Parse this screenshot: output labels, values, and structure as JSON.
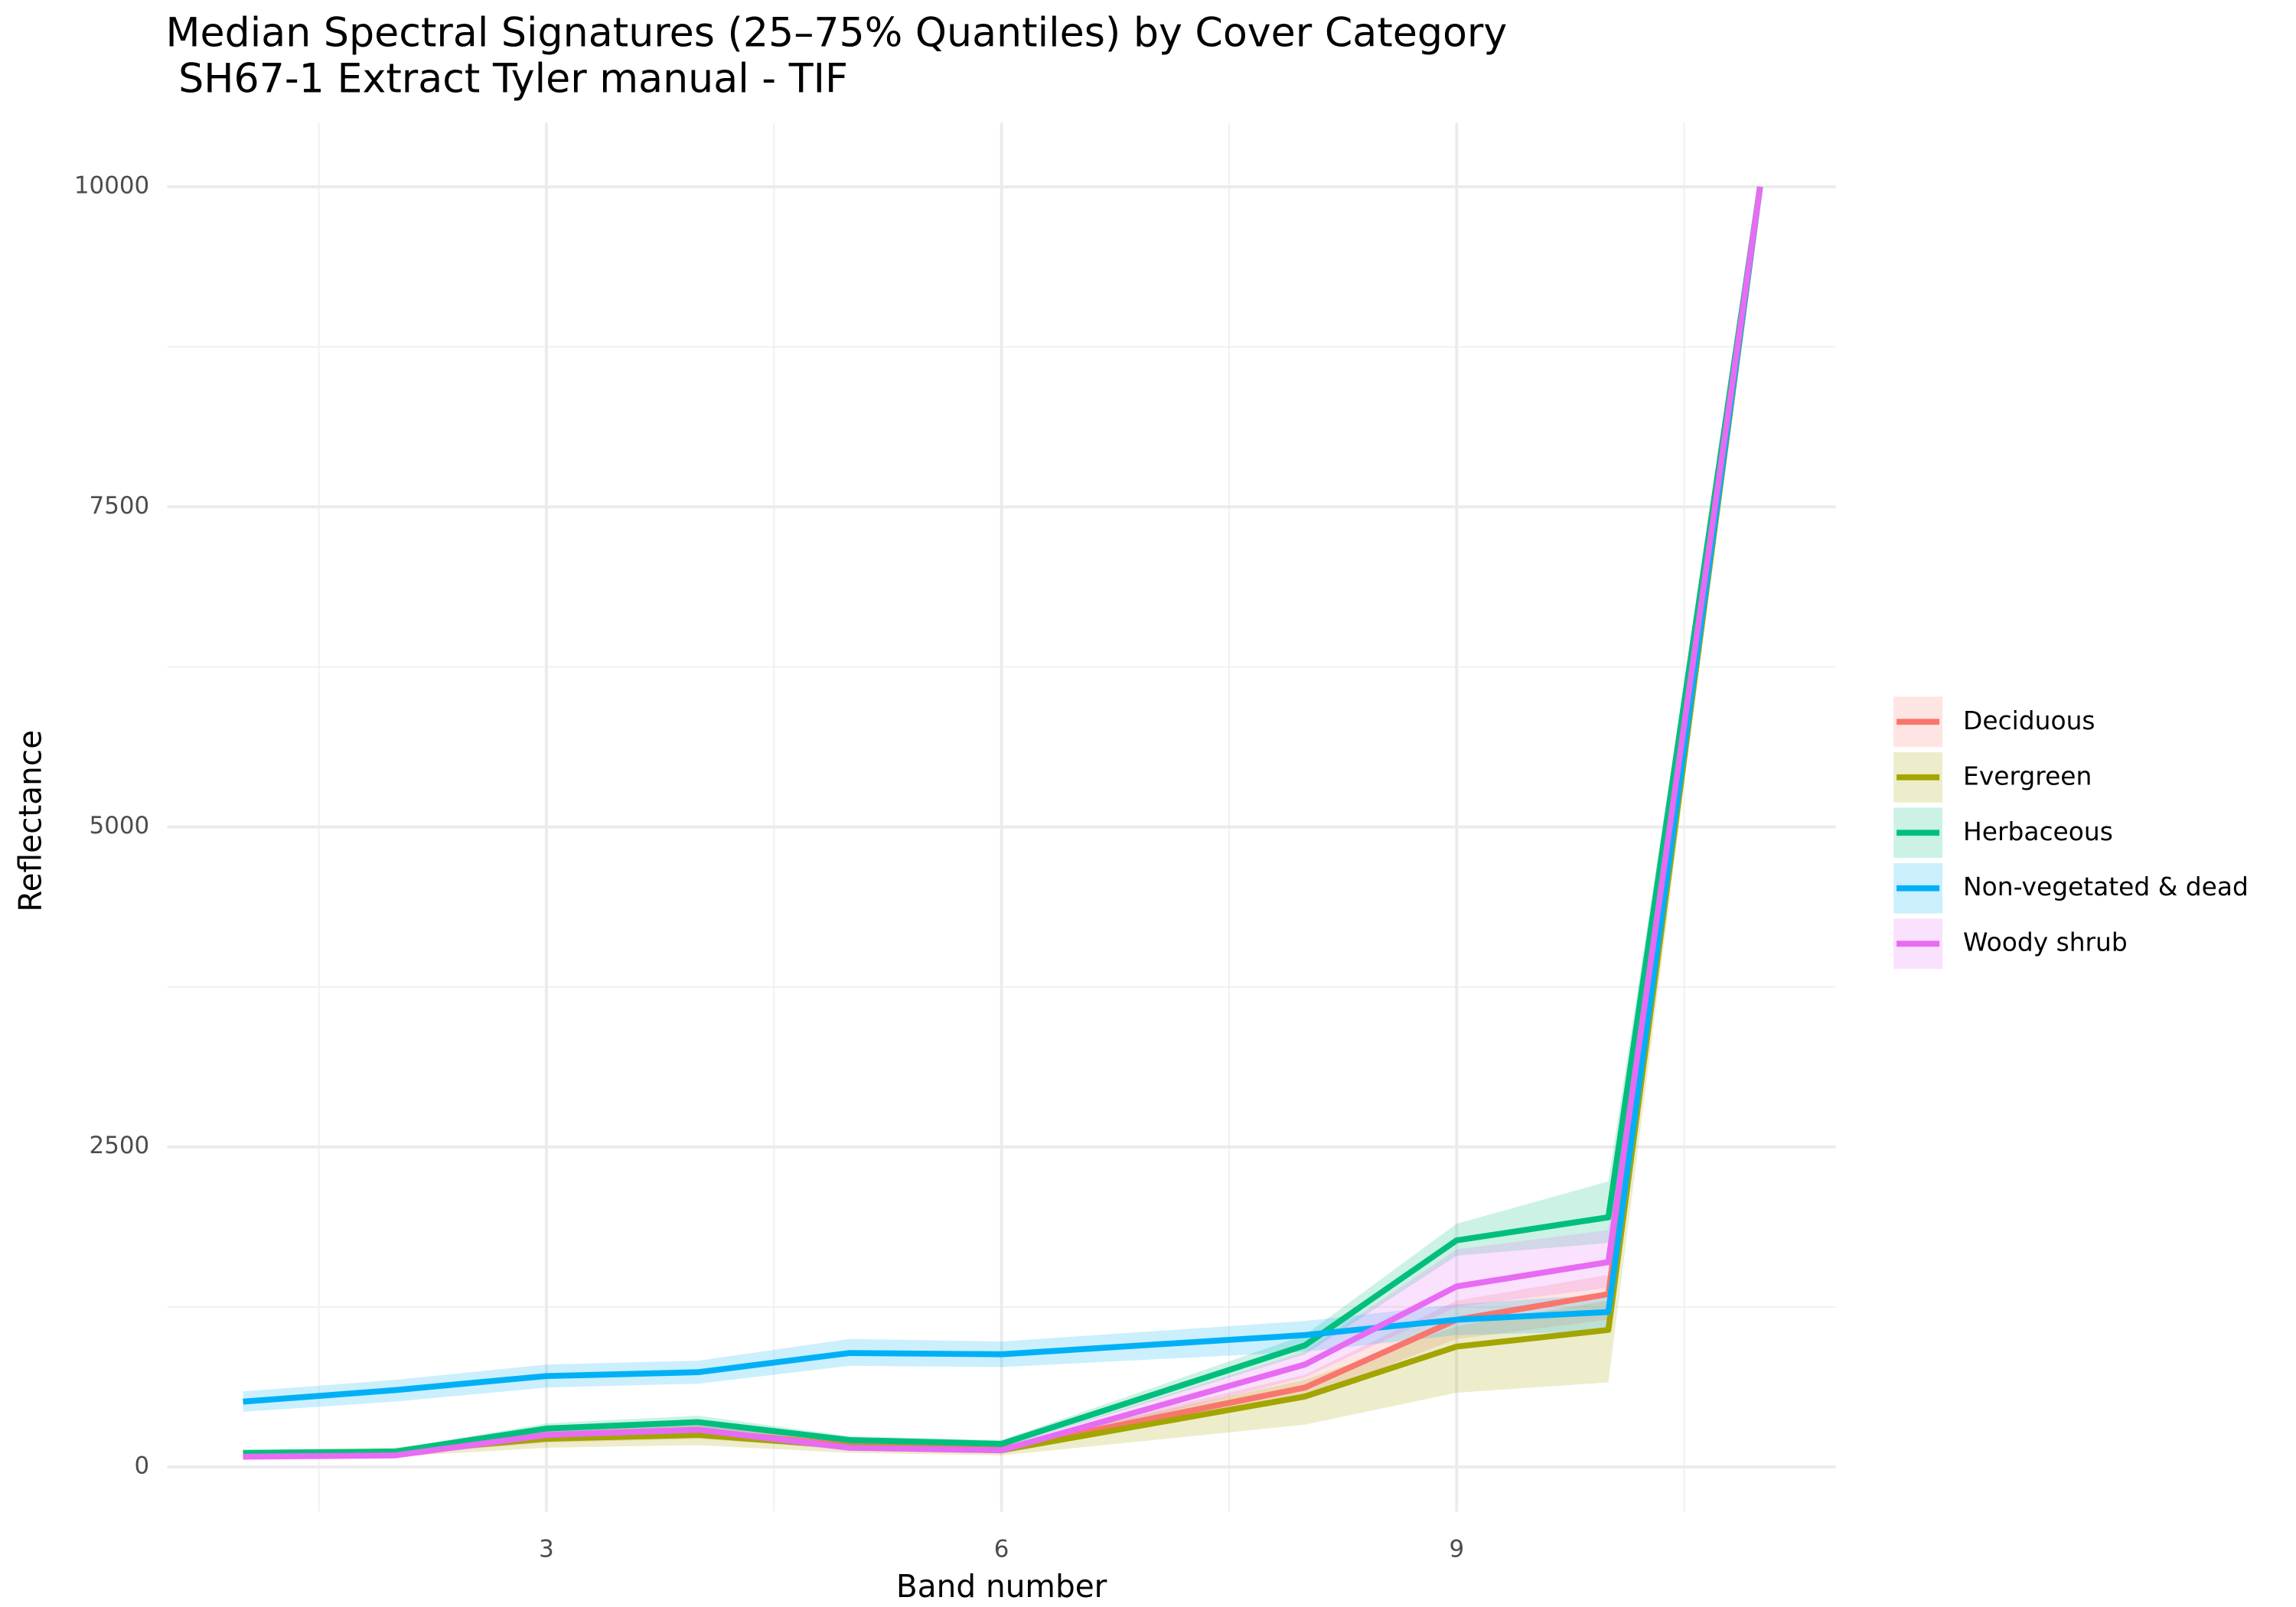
{
  "chart_data": {
    "type": "line",
    "title": "Median Spectral Signatures (25–75% Quantiles) by Cover Category",
    "subtitle": " SH67-1 Extract Tyler manual - TIF",
    "x_label": "Band number",
    "y_label": "Reflectance",
    "x": [
      1,
      2,
      3,
      4,
      5,
      6,
      8,
      9,
      10,
      11
    ],
    "xlim": [
      0.5,
      11.5
    ],
    "xticks": [
      3,
      6,
      9
    ],
    "x_minor_grid": [
      1.5,
      4.5,
      7.5,
      10.5
    ],
    "ylim": [
      -350,
      10500
    ],
    "yticks": [
      0,
      2500,
      5000,
      7500,
      10000
    ],
    "y_minor_grid": [
      1250,
      3750,
      6250,
      8750
    ],
    "grid": true,
    "legend": "right",
    "series": [
      {
        "name": "Deciduous",
        "color": "#F8766D",
        "values": [
          100,
          110,
          240,
          280,
          170,
          140,
          620,
          1150,
          1350,
          10000
        ],
        "lower": [
          80,
          90,
          190,
          220,
          140,
          115,
          540,
          1000,
          1150,
          10000
        ],
        "upper": [
          120,
          130,
          290,
          340,
          200,
          165,
          720,
          1300,
          1500,
          10000
        ]
      },
      {
        "name": "Evergreen",
        "color": "#A3A500",
        "values": [
          100,
          120,
          220,
          250,
          160,
          130,
          550,
          940,
          1070,
          10000
        ],
        "lower": [
          70,
          80,
          150,
          170,
          110,
          90,
          330,
          580,
          660,
          10000
        ],
        "upper": [
          130,
          150,
          290,
          320,
          200,
          170,
          680,
          1100,
          1300,
          10000
        ]
      },
      {
        "name": "Herbaceous",
        "color": "#00BF7D",
        "values": [
          110,
          120,
          300,
          350,
          210,
          180,
          950,
          1770,
          1950,
          10000
        ],
        "lower": [
          90,
          100,
          260,
          300,
          180,
          150,
          880,
          1650,
          1750,
          10000
        ],
        "upper": [
          130,
          140,
          340,
          400,
          240,
          210,
          1030,
          1900,
          2230,
          10000
        ]
      },
      {
        "name": "Non-vegetated & dead",
        "color": "#00B0F6",
        "values": [
          510,
          600,
          710,
          740,
          890,
          880,
          1030,
          1150,
          1210,
          10000
        ],
        "lower": [
          430,
          510,
          620,
          650,
          790,
          780,
          900,
          1030,
          1060,
          10000
        ],
        "upper": [
          590,
          680,
          800,
          830,
          1000,
          980,
          1140,
          1270,
          1350,
          10000
        ]
      },
      {
        "name": "Woody shrub",
        "color": "#E76BF3",
        "values": [
          80,
          90,
          250,
          290,
          150,
          130,
          800,
          1410,
          1600,
          10000
        ],
        "lower": [
          65,
          75,
          210,
          240,
          125,
          105,
          700,
          1250,
          1400,
          10000
        ],
        "upper": [
          95,
          105,
          290,
          340,
          175,
          155,
          900,
          1700,
          1850,
          10000
        ]
      }
    ]
  }
}
